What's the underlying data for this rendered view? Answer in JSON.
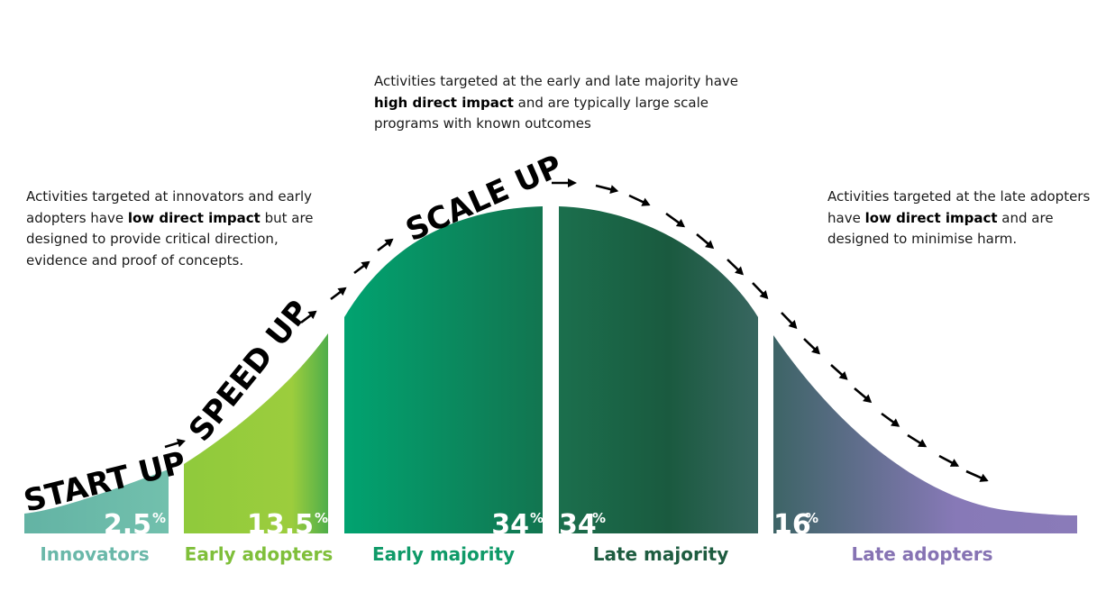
{
  "notes": {
    "left": {
      "pre": "Activities targeted at innovators and early adopters have ",
      "bold": "low direct impact",
      "post": " but are designed to provide critical direction, evidence and proof of concepts."
    },
    "top": {
      "pre": "Activities targeted at the early and late majority have ",
      "bold": "high direct impact",
      "post": " and are typically large scale programs with known outcomes"
    },
    "right": {
      "pre": "Activities targeted at the late adopters have ",
      "bold": "low direct impact",
      "post": " and are designed to minimise harm."
    }
  },
  "stages": {
    "start": "START UP",
    "speed": "SPEED UP",
    "scale": "SCALE UP"
  },
  "segments": [
    {
      "name": "Innovators",
      "percent": "2.5",
      "unit": "%",
      "label_color": "#6ab8a9"
    },
    {
      "name": "Early adopters",
      "percent": "13.5",
      "unit": "%",
      "label_color": "#7fbf3a"
    },
    {
      "name": "Early majority",
      "percent": "34",
      "unit": "%",
      "label_color": "#0f9a68"
    },
    {
      "name": "Late majority",
      "percent": "34",
      "unit": "%",
      "label_color": "#1e5c40"
    },
    {
      "name": "Late adopters",
      "percent": "16",
      "unit": "%",
      "label_color": "#8673b3"
    }
  ]
}
